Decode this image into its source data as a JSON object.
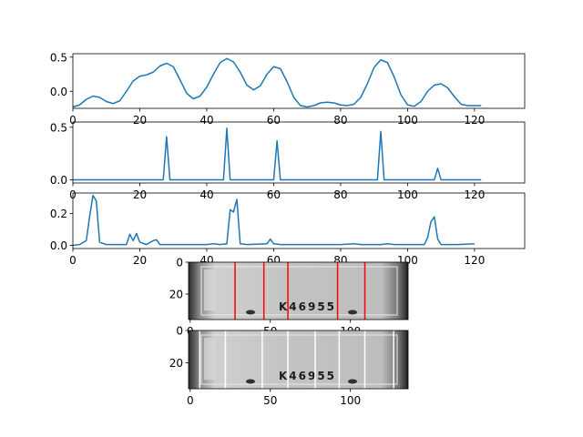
{
  "chart_data": [
    {
      "type": "line",
      "xlim": [
        0,
        135
      ],
      "ylim": [
        -0.25,
        0.55
      ],
      "xticks": [
        0,
        20,
        40,
        60,
        80,
        100,
        120
      ],
      "xtick_labels": [
        "0",
        "20",
        "40",
        "60",
        "80",
        "100",
        "120"
      ],
      "yticks": [
        0.0,
        0.5
      ],
      "ytick_labels": [
        "0.0",
        "0.5"
      ],
      "series": [
        {
          "color": "#1f77b4",
          "points": [
            [
              0,
              -0.23
            ],
            [
              2,
              -0.2
            ],
            [
              4,
              -0.12
            ],
            [
              6,
              -0.07
            ],
            [
              8,
              -0.09
            ],
            [
              10,
              -0.15
            ],
            [
              12,
              -0.18
            ],
            [
              14,
              -0.14
            ],
            [
              16,
              0.0
            ],
            [
              18,
              0.15
            ],
            [
              20,
              0.22
            ],
            [
              22,
              0.24
            ],
            [
              24,
              0.28
            ],
            [
              26,
              0.37
            ],
            [
              28,
              0.41
            ],
            [
              30,
              0.36
            ],
            [
              32,
              0.17
            ],
            [
              34,
              -0.03
            ],
            [
              36,
              -0.11
            ],
            [
              38,
              -0.07
            ],
            [
              40,
              0.06
            ],
            [
              42,
              0.25
            ],
            [
              44,
              0.42
            ],
            [
              46,
              0.48
            ],
            [
              48,
              0.43
            ],
            [
              50,
              0.28
            ],
            [
              52,
              0.09
            ],
            [
              54,
              0.02
            ],
            [
              56,
              0.08
            ],
            [
              58,
              0.25
            ],
            [
              60,
              0.36
            ],
            [
              62,
              0.33
            ],
            [
              64,
              0.14
            ],
            [
              66,
              -0.09
            ],
            [
              68,
              -0.21
            ],
            [
              70,
              -0.23
            ],
            [
              72,
              -0.21
            ],
            [
              74,
              -0.17
            ],
            [
              76,
              -0.16
            ],
            [
              78,
              -0.17
            ],
            [
              80,
              -0.2
            ],
            [
              82,
              -0.21
            ],
            [
              84,
              -0.19
            ],
            [
              86,
              -0.09
            ],
            [
              88,
              0.11
            ],
            [
              90,
              0.35
            ],
            [
              92,
              0.46
            ],
            [
              94,
              0.42
            ],
            [
              96,
              0.21
            ],
            [
              98,
              -0.05
            ],
            [
              100,
              -0.2
            ],
            [
              102,
              -0.22
            ],
            [
              104,
              -0.15
            ],
            [
              106,
              0.0
            ],
            [
              108,
              0.09
            ],
            [
              110,
              0.11
            ],
            [
              112,
              0.05
            ],
            [
              114,
              -0.08
            ],
            [
              116,
              -0.19
            ],
            [
              118,
              -0.21
            ],
            [
              120,
              -0.21
            ],
            [
              122,
              -0.21
            ]
          ]
        }
      ]
    },
    {
      "type": "line",
      "xlim": [
        0,
        135
      ],
      "ylim": [
        -0.03,
        0.55
      ],
      "xticks": [
        0,
        20,
        40,
        60,
        80,
        100,
        120
      ],
      "xtick_labels": [
        "0",
        "20",
        "40",
        "60",
        "80",
        "100",
        "120"
      ],
      "yticks": [
        0.0,
        0.5
      ],
      "ytick_labels": [
        "0.0",
        "0.5"
      ],
      "series": [
        {
          "color": "#1f77b4",
          "points": [
            [
              0,
              0
            ],
            [
              27,
              0
            ],
            [
              28,
              0.41
            ],
            [
              29,
              0
            ],
            [
              45,
              0
            ],
            [
              46,
              0.49
            ],
            [
              47,
              0
            ],
            [
              60,
              0
            ],
            [
              61,
              0.37
            ],
            [
              62,
              0
            ],
            [
              91,
              0
            ],
            [
              92,
              0.46
            ],
            [
              93,
              0
            ],
            [
              108,
              0
            ],
            [
              109,
              0.11
            ],
            [
              110,
              0
            ],
            [
              122,
              0
            ]
          ]
        }
      ]
    },
    {
      "type": "line",
      "xlim": [
        0,
        135
      ],
      "ylim": [
        -0.02,
        0.33
      ],
      "xticks": [
        0,
        20,
        40,
        60,
        80,
        100,
        120
      ],
      "xtick_labels": [
        "0",
        "20",
        "40",
        "60",
        "80",
        "100",
        "120"
      ],
      "yticks": [
        0.0,
        0.2
      ],
      "ytick_labels": [
        "0.0",
        "0.2"
      ],
      "series": [
        {
          "color": "#1f77b4",
          "points": [
            [
              0,
              0.0
            ],
            [
              2,
              0.005
            ],
            [
              4,
              0.03
            ],
            [
              5,
              0.18
            ],
            [
              6,
              0.315
            ],
            [
              7,
              0.28
            ],
            [
              8,
              0.02
            ],
            [
              10,
              0.005
            ],
            [
              16,
              0.005
            ],
            [
              17,
              0.07
            ],
            [
              18,
              0.03
            ],
            [
              19,
              0.075
            ],
            [
              20,
              0.02
            ],
            [
              22,
              0.005
            ],
            [
              24,
              0.03
            ],
            [
              25,
              0.035
            ],
            [
              26,
              0.005
            ],
            [
              30,
              0.005
            ],
            [
              40,
              0.005
            ],
            [
              42,
              0.01
            ],
            [
              44,
              0.005
            ],
            [
              46,
              0.01
            ],
            [
              47,
              0.225
            ],
            [
              48,
              0.21
            ],
            [
              49,
              0.29
            ],
            [
              50,
              0.01
            ],
            [
              52,
              0.005
            ],
            [
              58,
              0.01
            ],
            [
              59,
              0.04
            ],
            [
              60,
              0.01
            ],
            [
              62,
              0.005
            ],
            [
              70,
              0.005
            ],
            [
              80,
              0.005
            ],
            [
              84,
              0.01
            ],
            [
              86,
              0.005
            ],
            [
              90,
              0.005
            ],
            [
              92,
              0.005
            ],
            [
              94,
              0.01
            ],
            [
              96,
              0.005
            ],
            [
              100,
              0.005
            ],
            [
              105,
              0.005
            ],
            [
              106,
              0.05
            ],
            [
              107,
              0.15
            ],
            [
              108,
              0.18
            ],
            [
              109,
              0.04
            ],
            [
              110,
              0.005
            ],
            [
              115,
              0.005
            ],
            [
              120,
              0.01
            ]
          ]
        }
      ]
    },
    {
      "type": "image",
      "xlim": [
        -1,
        136
      ],
      "ylim": [
        36,
        0
      ],
      "xticks": [
        0,
        50,
        100
      ],
      "xtick_labels": [
        "0",
        "50",
        "100"
      ],
      "yticks": [
        0,
        20
      ],
      "ytick_labels": [
        "0",
        "20"
      ],
      "plate_text": "K46955",
      "separator_color": "#ff0000",
      "separators": [
        28,
        46,
        61,
        92,
        109
      ]
    },
    {
      "type": "image",
      "xlim": [
        -1,
        136
      ],
      "ylim": [
        36,
        0
      ],
      "xticks": [
        0,
        50,
        100
      ],
      "xtick_labels": [
        "0",
        "50",
        "100"
      ],
      "yticks": [
        0,
        20
      ],
      "ytick_labels": [
        "0",
        "20"
      ],
      "plate_text": "K46955",
      "separator_color": "#ffffff",
      "separators": [
        6,
        22,
        45,
        61,
        78,
        93,
        109,
        127
      ]
    }
  ]
}
